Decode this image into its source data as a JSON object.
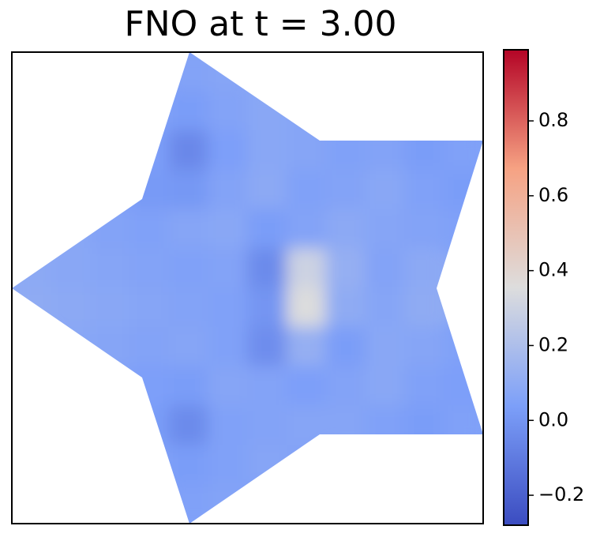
{
  "chart_data": {
    "type": "heatmap",
    "title": "FNO at t = 3.00",
    "z": [
      [
        null,
        null,
        null,
        null,
        0.06,
        0.07,
        null,
        null,
        null,
        null,
        null,
        null
      ],
      [
        null,
        null,
        null,
        0.05,
        0.03,
        0.06,
        0.08,
        0.07,
        null,
        null,
        null,
        null
      ],
      [
        null,
        null,
        null,
        0.04,
        -0.05,
        0.04,
        0.08,
        0.07,
        0.05,
        0.06,
        0.03,
        0.05
      ],
      [
        null,
        null,
        0.05,
        0.02,
        0.01,
        0.06,
        0.09,
        0.05,
        0.06,
        0.08,
        0.05,
        0.03
      ],
      [
        null,
        0.08,
        0.06,
        0.05,
        0.07,
        0.08,
        0.03,
        0.06,
        0.09,
        0.07,
        0.06,
        0.05
      ],
      [
        0.09,
        0.08,
        0.07,
        0.06,
        0.05,
        0.06,
        -0.04,
        0.3,
        0.12,
        0.06,
        0.09,
        null
      ],
      [
        0.1,
        0.09,
        0.08,
        0.07,
        0.06,
        0.05,
        0.0,
        0.35,
        0.1,
        0.07,
        0.1,
        null
      ],
      [
        null,
        0.08,
        0.07,
        0.06,
        0.07,
        0.05,
        -0.03,
        0.12,
        0.03,
        0.08,
        0.07,
        0.05
      ],
      [
        null,
        null,
        0.06,
        0.04,
        0.03,
        0.07,
        0.06,
        0.04,
        0.06,
        0.08,
        0.05,
        0.04
      ],
      [
        null,
        null,
        null,
        0.03,
        -0.04,
        0.05,
        0.06,
        0.07,
        0.07,
        0.05,
        0.03,
        0.05
      ],
      [
        null,
        null,
        null,
        0.05,
        0.03,
        0.05,
        0.07,
        0.06,
        null,
        null,
        null,
        null
      ],
      [
        null,
        null,
        null,
        null,
        0.05,
        0.06,
        0.04,
        null,
        null,
        null,
        null,
        null
      ]
    ],
    "colorbar": {
      "clim": [
        -0.28,
        0.99
      ],
      "ticks": [
        {
          "value": -0.2,
          "label": "−0.2"
        },
        {
          "value": 0,
          "label": "0.0"
        },
        0.2,
        0.4,
        0.6,
        0.8
      ],
      "colormap": [
        "#3b4cc0",
        "#7c9ff9",
        "#dddddd",
        "#f6a283",
        "#b40426"
      ]
    }
  }
}
